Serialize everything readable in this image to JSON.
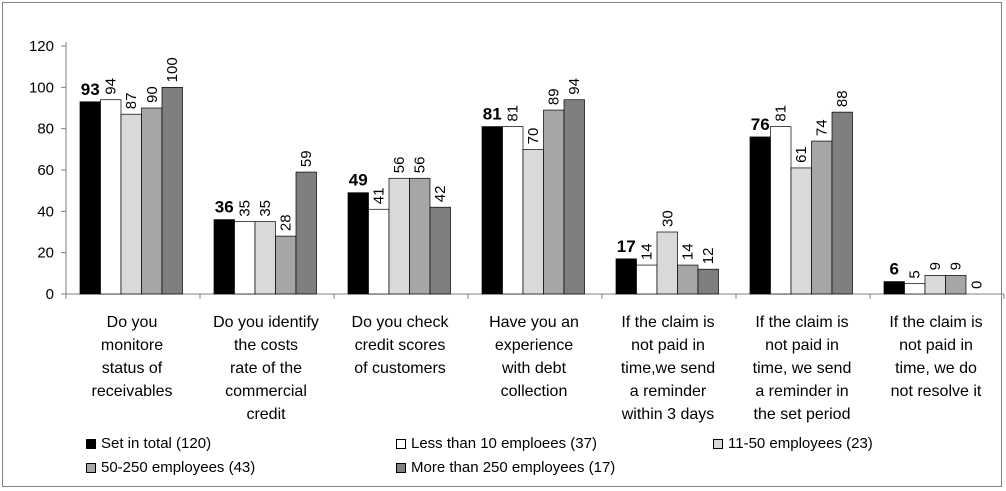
{
  "chart_data": {
    "type": "bar",
    "categories": [
      [
        "Do you",
        "monitore",
        "status of",
        "receivables"
      ],
      [
        "Do you identify",
        "the costs",
        "rate of the",
        "commercial",
        "credit"
      ],
      [
        "Do you check",
        "credit scores",
        "of customers"
      ],
      [
        "Have you an",
        "experience",
        "with debt",
        "collection"
      ],
      [
        "If the claim is",
        "not paid in",
        "time,we send",
        "a reminder",
        "within 3 days"
      ],
      [
        "If the claim is",
        "not paid in",
        "time, we send",
        "a reminder in",
        "the set period"
      ],
      [
        "If the claim is",
        "not paid in",
        "time, we do",
        "not resolve it"
      ]
    ],
    "series": [
      {
        "name": "Set in total (120)",
        "color": "#000000",
        "values": [
          93,
          36,
          49,
          81,
          17,
          76,
          6
        ]
      },
      {
        "name": "Less than 10 emploees (37)",
        "color": "#ffffff",
        "values": [
          94,
          35,
          41,
          81,
          14,
          81,
          5
        ]
      },
      {
        "name": "11-50 employees (23)",
        "color": "#d9d9d9",
        "values": [
          87,
          35,
          56,
          70,
          30,
          61,
          9
        ]
      },
      {
        "name": "50-250 employees (43)",
        "color": "#a6a6a6",
        "values": [
          90,
          28,
          56,
          89,
          14,
          74,
          9
        ]
      },
      {
        "name": "More than 250 employees (17)",
        "color": "#7f7f7f",
        "values": [
          100,
          59,
          42,
          94,
          12,
          88,
          0
        ]
      }
    ],
    "y_ticks": [
      "0",
      "20",
      "40",
      "60",
      "80",
      "100",
      "120"
    ],
    "ylim": [
      0,
      120
    ],
    "grid": false,
    "legend_position": "bottom"
  }
}
